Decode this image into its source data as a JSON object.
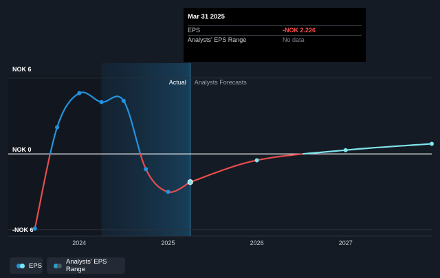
{
  "chart_data": {
    "type": "line",
    "y_axis": {
      "top_label": "NOK 6",
      "zero_label": "NOK 0",
      "bottom_label": "-NOK 6",
      "ylim": [
        -6.5,
        6.2
      ]
    },
    "x_axis": {
      "ticks": [
        "2024",
        "2025",
        "2026",
        "2027"
      ],
      "xlim": [
        2023.2,
        2027.97
      ]
    },
    "sections": {
      "actual_label": "Actual",
      "forecast_label": "Analysts Forecasts",
      "split_x": 2025.25,
      "shade_start_x": 2024.25
    },
    "series": [
      {
        "name": "EPS",
        "kind": "actual",
        "points": [
          {
            "x": 2023.5,
            "y": -5.9
          },
          {
            "x": 2023.75,
            "y": 2.1
          },
          {
            "x": 2024.0,
            "y": 4.8
          },
          {
            "x": 2024.25,
            "y": 4.1
          },
          {
            "x": 2024.5,
            "y": 4.2
          },
          {
            "x": 2024.75,
            "y": -1.2
          },
          {
            "x": 2025.0,
            "y": -3.0
          },
          {
            "x": 2025.25,
            "y": -2.226
          }
        ]
      },
      {
        "name": "EPS forecast",
        "kind": "forecast",
        "points": [
          {
            "x": 2025.25,
            "y": -2.226
          },
          {
            "x": 2026.0,
            "y": -0.5
          },
          {
            "x": 2027.0,
            "y": 0.3
          },
          {
            "x": 2027.97,
            "y": 0.8
          }
        ]
      }
    ],
    "colors": {
      "eps_line": "#2394df",
      "negative": "#e64d4d",
      "forecast": "#7ee6ec",
      "range": "#2ba0c2"
    }
  },
  "tooltip": {
    "date": "Mar 31 2025",
    "eps_label": "EPS",
    "eps_value": "-NOK 2.226",
    "range_label": "Analysts' EPS Range",
    "range_value": "No data"
  },
  "legend": {
    "eps_label": "EPS",
    "range_label": "Analysts' EPS Range"
  }
}
